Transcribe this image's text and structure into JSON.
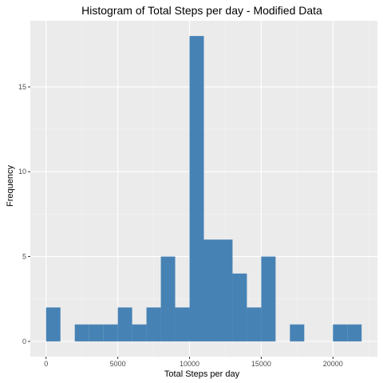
{
  "chart_data": {
    "type": "bar",
    "title": "Histogram of Total Steps per day - Modified Data",
    "xlabel": "Total Steps per day",
    "ylabel": "Frequency",
    "bin_width": 1000,
    "bins": [
      {
        "start": 0,
        "end": 1000,
        "count": 2
      },
      {
        "start": 1000,
        "end": 2000,
        "count": 0
      },
      {
        "start": 2000,
        "end": 3000,
        "count": 1
      },
      {
        "start": 3000,
        "end": 4000,
        "count": 1
      },
      {
        "start": 4000,
        "end": 5000,
        "count": 1
      },
      {
        "start": 5000,
        "end": 6000,
        "count": 2
      },
      {
        "start": 6000,
        "end": 7000,
        "count": 1
      },
      {
        "start": 7000,
        "end": 8000,
        "count": 2
      },
      {
        "start": 8000,
        "end": 9000,
        "count": 5
      },
      {
        "start": 9000,
        "end": 10000,
        "count": 2
      },
      {
        "start": 10000,
        "end": 11000,
        "count": 18
      },
      {
        "start": 11000,
        "end": 12000,
        "count": 6
      },
      {
        "start": 12000,
        "end": 13000,
        "count": 6
      },
      {
        "start": 13000,
        "end": 14000,
        "count": 4
      },
      {
        "start": 14000,
        "end": 15000,
        "count": 2
      },
      {
        "start": 15000,
        "end": 16000,
        "count": 5
      },
      {
        "start": 16000,
        "end": 17000,
        "count": 0
      },
      {
        "start": 17000,
        "end": 18000,
        "count": 1
      },
      {
        "start": 18000,
        "end": 19000,
        "count": 0
      },
      {
        "start": 19000,
        "end": 20000,
        "count": 0
      },
      {
        "start": 20000,
        "end": 21000,
        "count": 1
      },
      {
        "start": 21000,
        "end": 22000,
        "count": 1
      }
    ],
    "xlim": [
      -1100,
      23100
    ],
    "ylim": [
      -0.9,
      18.9
    ],
    "x_ticks": [
      0,
      5000,
      10000,
      15000,
      20000
    ],
    "x_tick_labels": [
      "0",
      "5000",
      "10000",
      "15000",
      "20000"
    ],
    "y_ticks": [
      0,
      5,
      10,
      15
    ],
    "y_tick_labels": [
      "0",
      "5",
      "10",
      "15"
    ],
    "grid": true,
    "legend": "none",
    "colors": {
      "bar": "#4682b4",
      "panel_background": "#ebebeb",
      "grid_major": "#ffffff",
      "grid_minor": "#f5f5f5",
      "tick_label": "#4d4d4d",
      "tick_mark": "#333333"
    }
  }
}
